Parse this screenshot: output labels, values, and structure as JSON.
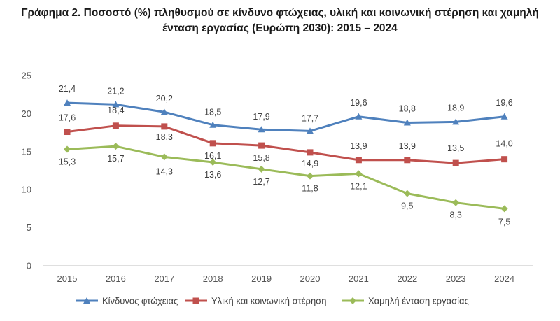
{
  "chart_title": {
    "line1": "Γράφημα 2. Ποσοστό (%) πληθυσμού σε κίνδυνο φτώχειας, υλική και κοινωνική στέρηση και χαμηλή",
    "line2": "ένταση εργασίας (Ευρώπη 2030): 2015 – 2024"
  },
  "chart_data": {
    "type": "line",
    "title": "Γράφημα 2. Ποσοστό (%) πληθυσμού σε κίνδυνο φτώχειας, υλική και κοινωνική στέρηση και χαμηλή ένταση εργασίας (Ευρώπη 2030): 2015 – 2024",
    "xlabel": "",
    "ylabel": "",
    "x": [
      "2015",
      "2016",
      "2017",
      "2018",
      "2019",
      "2020",
      "2021",
      "2022",
      "2023",
      "2024"
    ],
    "ylim": [
      0,
      25
    ],
    "yticks": [
      0,
      5,
      10,
      15,
      20,
      25
    ],
    "grid": false,
    "legend_position": "bottom",
    "series": [
      {
        "name": "Κίνδυνος φτώχειας",
        "color": "#4f81bd",
        "marker": "triangle",
        "values": [
          21.4,
          21.2,
          20.2,
          18.5,
          17.9,
          17.7,
          19.6,
          18.8,
          18.9,
          19.6
        ],
        "labels": [
          "21,4",
          "21,2",
          "20,2",
          "18,5",
          "17,9",
          "17,7",
          "19,6",
          "18,8",
          "18,9",
          "19,6"
        ]
      },
      {
        "name": "Υλική και κοινωνική στέρηση",
        "color": "#c0504d",
        "marker": "square",
        "values": [
          17.6,
          18.4,
          18.3,
          16.1,
          15.8,
          14.9,
          13.9,
          13.9,
          13.5,
          14.0
        ],
        "labels": [
          "17,6",
          "18,4",
          "18,3",
          "16,1",
          "15,8",
          "14,9",
          "13,9",
          "13,9",
          "13,5",
          "14,0"
        ]
      },
      {
        "name": "Χαμηλή ένταση εργασίας",
        "color": "#9bbb59",
        "marker": "diamond",
        "values": [
          15.3,
          15.7,
          14.3,
          13.6,
          12.7,
          11.8,
          12.1,
          9.5,
          8.3,
          7.5
        ],
        "labels": [
          "15,3",
          "15,7",
          "14,3",
          "13,6",
          "12,7",
          "11,8",
          "12,1",
          "9,5",
          "8,3",
          "7,5"
        ]
      }
    ]
  }
}
